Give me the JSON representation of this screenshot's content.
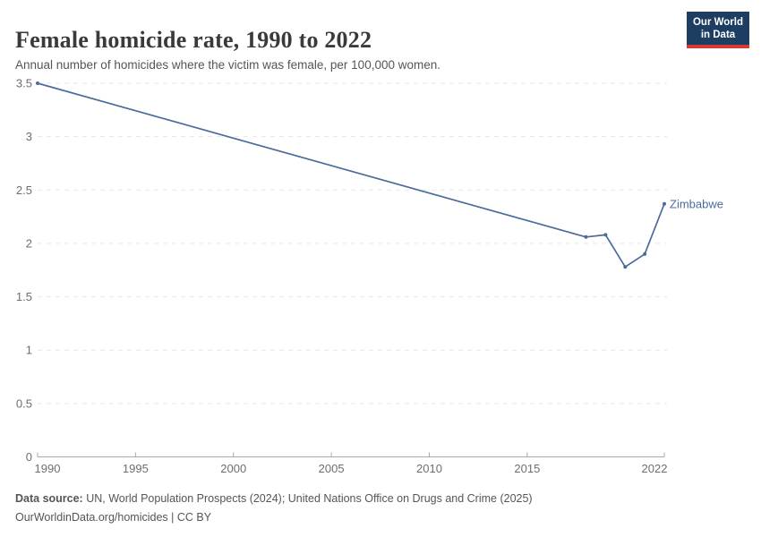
{
  "header": {
    "title": "Female homicide rate, 1990 to 2022",
    "subtitle": "Annual number of homicides where the victim was female, per 100,000 women.",
    "logo": {
      "line1": "Our World",
      "line2": "in Data",
      "bg_color": "#1d3d63",
      "accent_color": "#d73a31"
    }
  },
  "chart_data": {
    "type": "line",
    "title": "Female homicide rate, 1990 to 2022",
    "xlabel": "",
    "ylabel": "",
    "x": [
      1990,
      2018,
      2019,
      2020,
      2021,
      2022
    ],
    "series": [
      {
        "name": "Zimbabwe",
        "color": "#4c6a9c",
        "values": [
          3.5,
          2.06,
          2.08,
          1.78,
          1.9,
          2.37
        ]
      }
    ],
    "xlim": [
      1990,
      2022
    ],
    "ylim": [
      0,
      3.5
    ],
    "x_ticks": [
      1990,
      1995,
      2000,
      2005,
      2010,
      2015,
      2022
    ],
    "y_ticks": [
      0,
      0.5,
      1,
      1.5,
      2,
      2.5,
      3,
      3.5
    ],
    "grid": "horizontal-dashed",
    "legend": "end-of-line-label",
    "colors": {
      "grid": "#e7e7e7",
      "axis": "#a9a9a9",
      "tick_text": "#6e6e6e"
    }
  },
  "footer": {
    "source_label": "Data source:",
    "source_text": " UN, World Population Prospects (2024); United Nations Office on Drugs and Crime (2025)",
    "license_text": "OurWorldinData.org/homicides | CC BY"
  }
}
